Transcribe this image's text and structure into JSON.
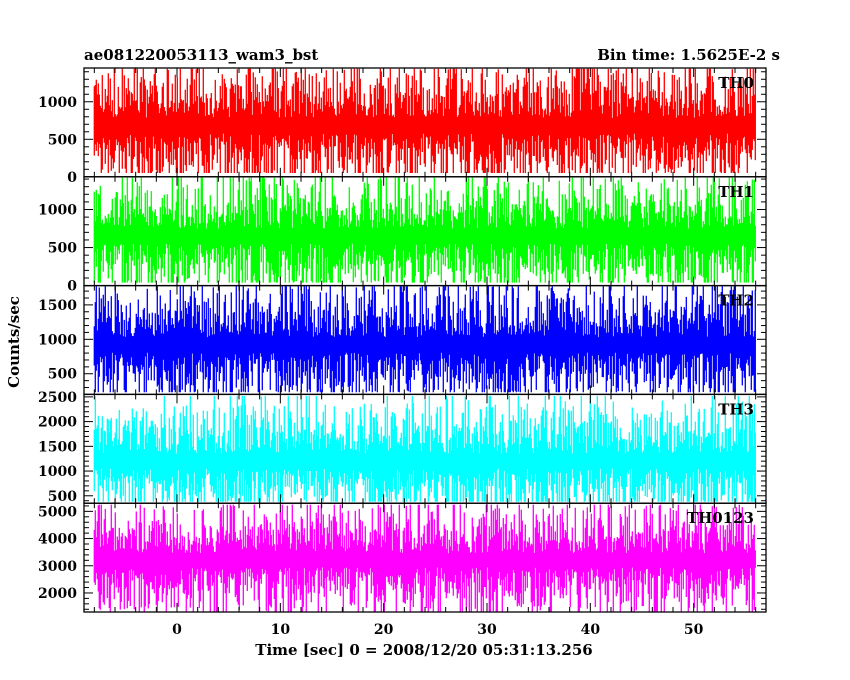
{
  "chart_data": {
    "type": "line",
    "title": "ae081220053113_wam3_bst",
    "bin_time_label": "Bin time: 1.5625E-2 s",
    "xlabel": "Time [sec] 0 = 2008/12/20 05:31:13.256",
    "ylabel": "Counts/sec",
    "xlim": [
      -9,
      57
    ],
    "x_ticks": [
      0,
      10,
      20,
      30,
      40,
      50
    ],
    "x_tick_labels": [
      "0",
      "10",
      "20",
      "30",
      "40",
      "50"
    ],
    "data_range_x": [
      -8,
      56
    ],
    "panels": [
      {
        "name": "TH0",
        "color": "#ff0000",
        "ylim": [
          0,
          1450
        ],
        "y_ticks": [
          0,
          500,
          1000
        ],
        "y_tick_labels": [
          "0",
          "500",
          "1000"
        ],
        "mean": 680,
        "spread": 260,
        "min": 50,
        "max": 1440
      },
      {
        "name": "TH1",
        "color": "#00ff00",
        "ylim": [
          0,
          1430
        ],
        "y_ticks": [
          0,
          500,
          1000
        ],
        "y_tick_labels": [
          "0",
          "500",
          "1000"
        ],
        "mean": 650,
        "spread": 250,
        "min": 40,
        "max": 1420
      },
      {
        "name": "TH2",
        "color": "#0000ff",
        "ylim": [
          200,
          1780
        ],
        "y_ticks": [
          500,
          1000,
          1500
        ],
        "y_tick_labels": [
          "500",
          "1000",
          "1500"
        ],
        "mean": 920,
        "spread": 280,
        "min": 230,
        "max": 1770
      },
      {
        "name": "TH3",
        "color": "#00ffff",
        "ylim": [
          350,
          2550
        ],
        "y_ticks": [
          500,
          1000,
          1500,
          2000,
          2500
        ],
        "y_tick_labels": [
          "500",
          "1000",
          "1500",
          "2000",
          "2500"
        ],
        "mean": 1200,
        "spread": 380,
        "min": 380,
        "max": 2520
      },
      {
        "name": "TH0123",
        "color": "#ff00ff",
        "ylim": [
          1300,
          5300
        ],
        "y_ticks": [
          2000,
          3000,
          4000,
          5000
        ],
        "y_tick_labels": [
          "2000",
          "3000",
          "4000",
          "5000"
        ],
        "mean": 3200,
        "spread": 650,
        "min": 1320,
        "max": 5250
      }
    ]
  }
}
